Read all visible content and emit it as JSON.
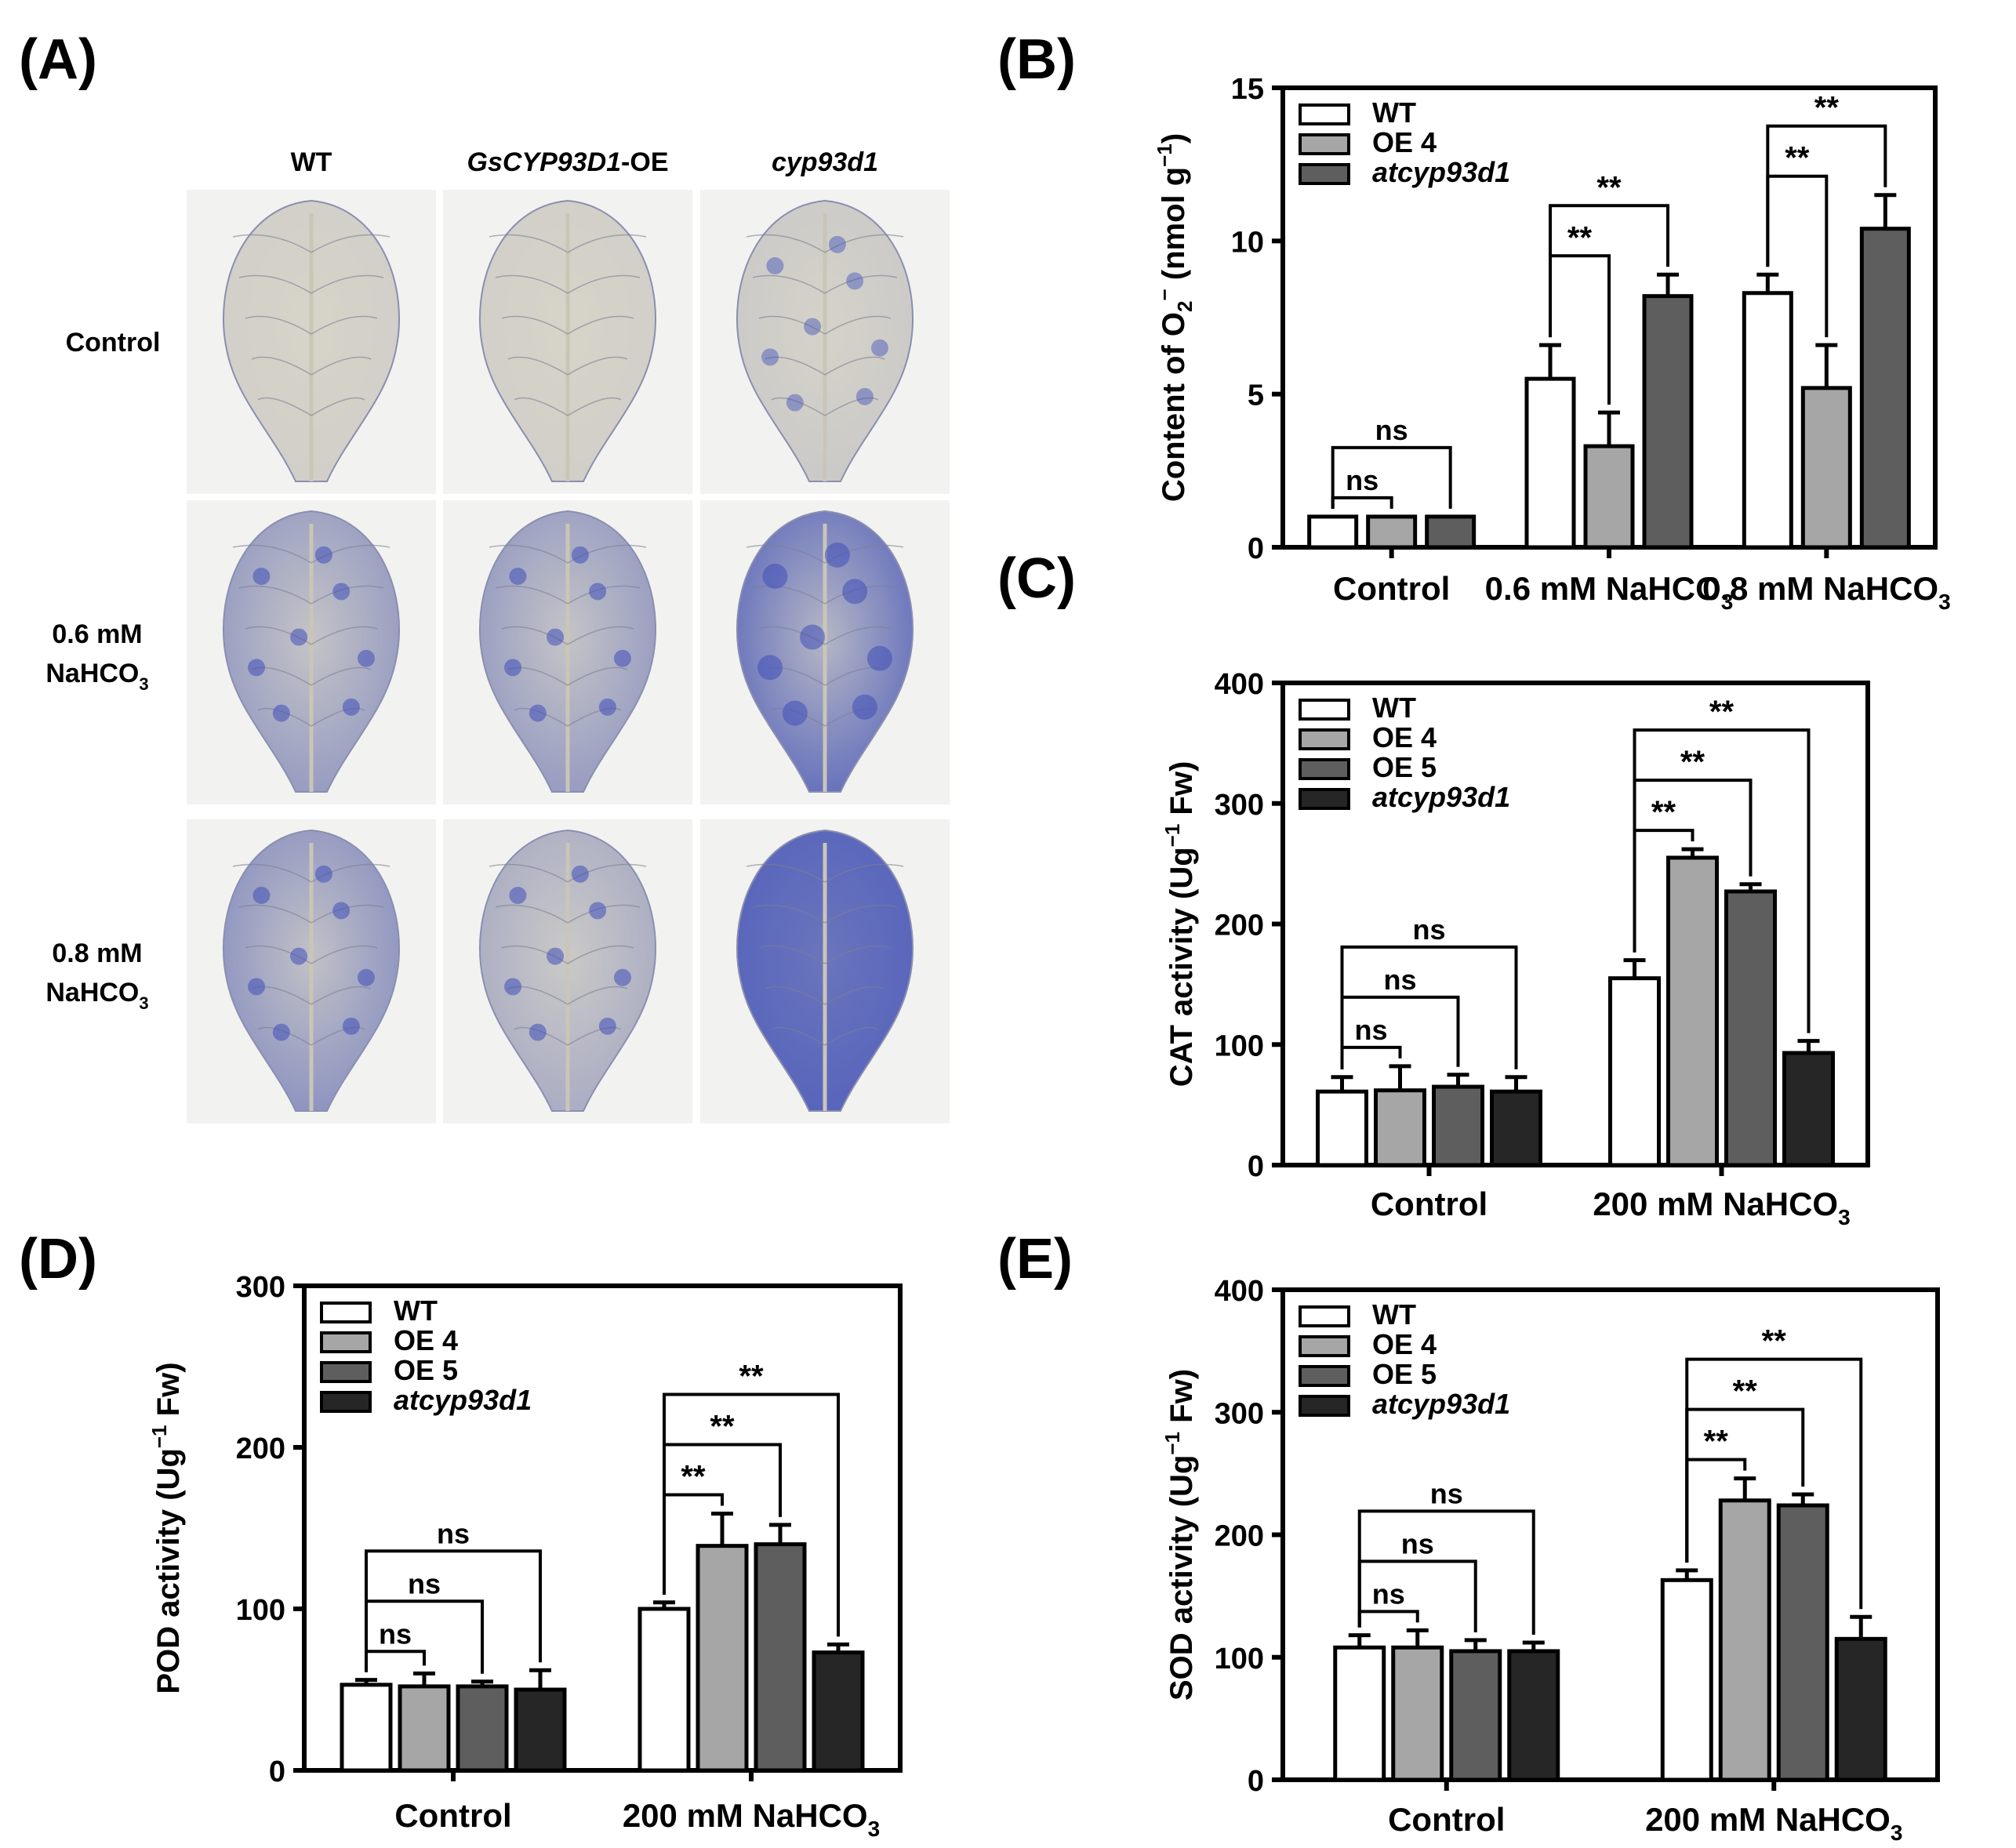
{
  "panel_a": {
    "label": "(A)",
    "columns": [
      {
        "text": "WT",
        "italic": false
      },
      {
        "text": "GsCYP93D1",
        "suffix": "-OE",
        "italic": true
      },
      {
        "text": "cyp93d1",
        "italic": true
      }
    ],
    "rows": [
      {
        "line1": "Control",
        "line2": "",
        "sub": ""
      },
      {
        "line1": "0.6 mM",
        "line2": "NaHCO",
        "sub": "3"
      },
      {
        "line1": "0.8 mM",
        "line2": "NaHCO",
        "sub": "3"
      }
    ],
    "leaf_stain": [
      [
        "light",
        "light",
        "spotted"
      ],
      [
        "medium",
        "medium",
        "heavy"
      ],
      [
        "heavy-edge",
        "spotted-edge",
        "uniform"
      ]
    ],
    "colors": {
      "stain": "#3f4fb8",
      "leaf": "#dad7c9",
      "background": "#f2f2f0"
    }
  },
  "chart_data": [
    {
      "panel": "(B)",
      "type": "bar",
      "ylabel": "Content of O2⁻ (nmol g⁻¹)",
      "ylabel_parts": {
        "main": "Content of O",
        "sub": "2",
        "sup1": "−",
        "unit": " (nmol g",
        "sup2": "−1",
        "close": ")"
      },
      "ylim": [
        0,
        15
      ],
      "yticks": [
        0,
        5,
        10,
        15
      ],
      "categories": [
        "Control",
        "0.6 mM NaHCO3",
        "0.8 mM NaHCO3"
      ],
      "category_parts": [
        {
          "main": "Control",
          "sub": ""
        },
        {
          "main": "0.6 mM NaHCO",
          "sub": "3"
        },
        {
          "main": "0.8 mM NaHCO",
          "sub": "3"
        }
      ],
      "legend": [
        {
          "name": "WT",
          "italic": false
        },
        {
          "name": "OE 4",
          "italic": false
        },
        {
          "name": "atcyp93d1",
          "italic": true
        }
      ],
      "series": [
        {
          "name": "WT",
          "color": "#ffffff",
          "values": [
            1.0,
            5.5,
            8.3
          ],
          "errors": [
            0,
            1.1,
            0.6
          ]
        },
        {
          "name": "OE 4",
          "color": "#a6a6a6",
          "values": [
            1.0,
            3.3,
            5.2
          ],
          "errors": [
            0,
            1.1,
            1.4
          ]
        },
        {
          "name": "atcyp93d1",
          "color": "#5e5e5e",
          "values": [
            1.0,
            8.2,
            10.4
          ],
          "errors": [
            0,
            0.7,
            1.1
          ]
        }
      ],
      "significance": [
        {
          "group": 0,
          "from": 0,
          "to": 1,
          "level": 0,
          "label": "ns"
        },
        {
          "group": 0,
          "from": 0,
          "to": 2,
          "level": 1,
          "label": "ns"
        },
        {
          "group": 1,
          "from": 0,
          "to": 1,
          "level": 0,
          "label": "**"
        },
        {
          "group": 1,
          "from": 0,
          "to": 2,
          "level": 1,
          "label": "**"
        },
        {
          "group": 2,
          "from": 0,
          "to": 1,
          "level": 0,
          "label": "**"
        },
        {
          "group": 2,
          "from": 0,
          "to": 2,
          "level": 1,
          "label": "**"
        }
      ]
    },
    {
      "panel": "(C)",
      "type": "bar",
      "ylabel": "CAT activity (Ug⁻¹ Fw)",
      "ylabel_parts": {
        "main": "CAT activity (Ug",
        "sup": "−1",
        "unit": " Fw)"
      },
      "ylim": [
        0,
        400
      ],
      "yticks": [
        0,
        100,
        200,
        300,
        400
      ],
      "categories": [
        "Control",
        "200 mM NaHCO3"
      ],
      "category_parts": [
        {
          "main": "Control",
          "sub": ""
        },
        {
          "main": "200 mM NaHCO",
          "sub": "3"
        }
      ],
      "legend": [
        {
          "name": "WT",
          "italic": false
        },
        {
          "name": "OE 4",
          "italic": false
        },
        {
          "name": "OE 5",
          "italic": false
        },
        {
          "name": "atcyp93d1",
          "italic": true
        }
      ],
      "series": [
        {
          "name": "WT",
          "color": "#ffffff",
          "values": [
            61,
            155
          ],
          "errors": [
            12,
            15
          ]
        },
        {
          "name": "OE 4",
          "color": "#a6a6a6",
          "values": [
            62,
            255
          ],
          "errors": [
            20,
            7
          ]
        },
        {
          "name": "OE 5",
          "color": "#5e5e5e",
          "values": [
            65,
            227
          ],
          "errors": [
            10,
            6
          ]
        },
        {
          "name": "atcyp93d1",
          "color": "#262626",
          "values": [
            61,
            93
          ],
          "errors": [
            12,
            10
          ]
        }
      ],
      "significance": [
        {
          "group": 0,
          "from": 0,
          "to": 1,
          "level": 0,
          "label": "ns"
        },
        {
          "group": 0,
          "from": 0,
          "to": 2,
          "level": 1,
          "label": "ns"
        },
        {
          "group": 0,
          "from": 0,
          "to": 3,
          "level": 2,
          "label": "ns"
        },
        {
          "group": 1,
          "from": 0,
          "to": 1,
          "level": 0,
          "label": "**"
        },
        {
          "group": 1,
          "from": 0,
          "to": 2,
          "level": 1,
          "label": "**"
        },
        {
          "group": 1,
          "from": 0,
          "to": 3,
          "level": 2,
          "label": "**"
        }
      ]
    },
    {
      "panel": "(D)",
      "type": "bar",
      "ylabel": "POD activity (Ug⁻¹ Fw)",
      "ylabel_parts": {
        "main": "POD activity (Ug",
        "sup": "−1",
        "unit": " Fw)"
      },
      "ylim": [
        0,
        300
      ],
      "yticks": [
        0,
        100,
        200,
        300
      ],
      "categories": [
        "Control",
        "200 mM NaHCO3"
      ],
      "category_parts": [
        {
          "main": "Control",
          "sub": ""
        },
        {
          "main": "200 mM NaHCO",
          "sub": "3"
        }
      ],
      "legend": [
        {
          "name": "WT",
          "italic": false
        },
        {
          "name": "OE 4",
          "italic": false
        },
        {
          "name": "OE 5",
          "italic": false
        },
        {
          "name": "atcyp93d1",
          "italic": true
        }
      ],
      "series": [
        {
          "name": "WT",
          "color": "#ffffff",
          "values": [
            53,
            100
          ],
          "errors": [
            3,
            4
          ]
        },
        {
          "name": "OE 4",
          "color": "#a6a6a6",
          "values": [
            52,
            139
          ],
          "errors": [
            8,
            20
          ]
        },
        {
          "name": "OE 5",
          "color": "#5e5e5e",
          "values": [
            52,
            140
          ],
          "errors": [
            3,
            12
          ]
        },
        {
          "name": "atcyp93d1",
          "color": "#262626",
          "values": [
            50,
            73
          ],
          "errors": [
            12,
            5
          ]
        }
      ],
      "significance": [
        {
          "group": 0,
          "from": 0,
          "to": 1,
          "level": 0,
          "label": "ns"
        },
        {
          "group": 0,
          "from": 0,
          "to": 2,
          "level": 1,
          "label": "ns"
        },
        {
          "group": 0,
          "from": 0,
          "to": 3,
          "level": 2,
          "label": "ns"
        },
        {
          "group": 1,
          "from": 0,
          "to": 1,
          "level": 0,
          "label": "**"
        },
        {
          "group": 1,
          "from": 0,
          "to": 2,
          "level": 1,
          "label": "**"
        },
        {
          "group": 1,
          "from": 0,
          "to": 3,
          "level": 2,
          "label": "**"
        }
      ]
    },
    {
      "panel": "(E)",
      "type": "bar",
      "ylabel": "SOD activity (Ug⁻¹ Fw)",
      "ylabel_parts": {
        "main": "SOD activity (Ug",
        "sup": "−1",
        "unit": " Fw)"
      },
      "ylim": [
        0,
        400
      ],
      "yticks": [
        0,
        100,
        200,
        300,
        400
      ],
      "categories": [
        "Control",
        "200 mM NaHCO3"
      ],
      "category_parts": [
        {
          "main": "Control",
          "sub": ""
        },
        {
          "main": "200 mM NaHCO",
          "sub": "3"
        }
      ],
      "legend": [
        {
          "name": "WT",
          "italic": false
        },
        {
          "name": "OE 4",
          "italic": false
        },
        {
          "name": "OE 5",
          "italic": false
        },
        {
          "name": "atcyp93d1",
          "italic": true
        }
      ],
      "series": [
        {
          "name": "WT",
          "color": "#ffffff",
          "values": [
            108,
            163
          ],
          "errors": [
            10,
            8
          ]
        },
        {
          "name": "OE 4",
          "color": "#a6a6a6",
          "values": [
            108,
            228
          ],
          "errors": [
            14,
            18
          ]
        },
        {
          "name": "OE 5",
          "color": "#5e5e5e",
          "values": [
            105,
            224
          ],
          "errors": [
            9,
            9
          ]
        },
        {
          "name": "atcyp93d1",
          "color": "#262626",
          "values": [
            105,
            115
          ],
          "errors": [
            7,
            18
          ]
        }
      ],
      "significance": [
        {
          "group": 0,
          "from": 0,
          "to": 1,
          "level": 0,
          "label": "ns"
        },
        {
          "group": 0,
          "from": 0,
          "to": 2,
          "level": 1,
          "label": "ns"
        },
        {
          "group": 0,
          "from": 0,
          "to": 3,
          "level": 2,
          "label": "ns"
        },
        {
          "group": 1,
          "from": 0,
          "to": 1,
          "level": 0,
          "label": "**"
        },
        {
          "group": 1,
          "from": 0,
          "to": 2,
          "level": 1,
          "label": "**"
        },
        {
          "group": 1,
          "from": 0,
          "to": 3,
          "level": 2,
          "label": "**"
        }
      ]
    }
  ]
}
